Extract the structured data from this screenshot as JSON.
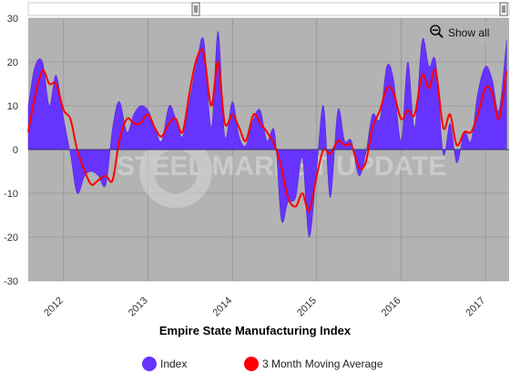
{
  "chart_data": {
    "type": "area",
    "title": "Empire State Manufacturing Index",
    "watermark": "STEEL MARKET UPDATE",
    "xlabel": "",
    "ylabel": "",
    "ylim": [
      -30,
      30
    ],
    "yticks": [
      -30,
      -20,
      -10,
      0,
      10,
      20,
      30
    ],
    "xlim": [
      2011.75,
      2017.45
    ],
    "xticks": [
      {
        "value": 2012.17,
        "label": "2012"
      },
      {
        "value": 2013.17,
        "label": "2013"
      },
      {
        "value": 2014.17,
        "label": "2014"
      },
      {
        "value": 2015.17,
        "label": "2015"
      },
      {
        "value": 2016.17,
        "label": "2016"
      },
      {
        "value": 2017.17,
        "label": "2017"
      }
    ],
    "grid": true,
    "legend": "bottom",
    "series": [
      {
        "name": "Index",
        "style": "area",
        "color": "#6633ff",
        "x": [
          2011.75,
          2011.83,
          2011.92,
          2012.0,
          2012.08,
          2012.17,
          2012.25,
          2012.33,
          2012.42,
          2012.5,
          2012.58,
          2012.67,
          2012.75,
          2012.83,
          2012.92,
          2013.0,
          2013.08,
          2013.17,
          2013.25,
          2013.33,
          2013.42,
          2013.5,
          2013.58,
          2013.67,
          2013.75,
          2013.83,
          2013.92,
          2014.0,
          2014.08,
          2014.17,
          2014.25,
          2014.33,
          2014.42,
          2014.5,
          2014.58,
          2014.67,
          2014.75,
          2014.83,
          2014.92,
          2015.0,
          2015.08,
          2015.17,
          2015.25,
          2015.33,
          2015.42,
          2015.5,
          2015.58,
          2015.67,
          2015.75,
          2015.83,
          2015.92,
          2016.0,
          2016.08,
          2016.17,
          2016.25,
          2016.33,
          2016.42,
          2016.5,
          2016.58,
          2016.67,
          2016.75,
          2016.83,
          2016.92,
          2017.0,
          2017.08,
          2017.17,
          2017.25,
          2017.33,
          2017.42
        ],
        "values": [
          10,
          19,
          20,
          10,
          17,
          7,
          -1,
          -10,
          -6,
          -5,
          -6,
          -8,
          5,
          11,
          4,
          8,
          10,
          9,
          5,
          2,
          10,
          7,
          3,
          12,
          20,
          25,
          5,
          27,
          3,
          11,
          3,
          1,
          7,
          9,
          2,
          4,
          -16,
          -12,
          -11,
          -2,
          -20,
          -4,
          10,
          -11,
          9,
          2,
          2,
          -6,
          -1,
          8,
          7,
          19,
          16,
          2,
          20,
          5,
          25,
          19,
          20,
          -1,
          6,
          -3,
          4,
          2,
          13,
          19,
          16,
          9,
          25
        ]
      },
      {
        "name": "3 Month Moving Average",
        "style": "line",
        "color": "#ff0000",
        "x": [
          2011.75,
          2011.83,
          2011.92,
          2012.0,
          2012.08,
          2012.17,
          2012.25,
          2012.33,
          2012.42,
          2012.5,
          2012.58,
          2012.67,
          2012.75,
          2012.83,
          2012.92,
          2013.0,
          2013.08,
          2013.17,
          2013.25,
          2013.33,
          2013.42,
          2013.5,
          2013.58,
          2013.67,
          2013.75,
          2013.83,
          2013.92,
          2014.0,
          2014.08,
          2014.17,
          2014.25,
          2014.33,
          2014.42,
          2014.5,
          2014.58,
          2014.67,
          2014.75,
          2014.83,
          2014.92,
          2015.0,
          2015.08,
          2015.17,
          2015.25,
          2015.33,
          2015.42,
          2015.5,
          2015.58,
          2015.67,
          2015.75,
          2015.83,
          2015.92,
          2016.0,
          2016.08,
          2016.17,
          2016.25,
          2016.33,
          2016.42,
          2016.5,
          2016.58,
          2016.67,
          2016.75,
          2016.83,
          2016.92,
          2017.0,
          2017.08,
          2017.17,
          2017.25,
          2017.33,
          2017.42
        ],
        "values": [
          4,
          12,
          18,
          15,
          15,
          9,
          7,
          0,
          -5,
          -8,
          -7,
          -6,
          -7,
          2,
          7,
          6,
          6,
          8,
          5,
          3,
          6,
          7,
          4,
          14,
          21,
          22,
          10,
          20,
          6,
          8,
          5,
          2,
          8,
          6,
          4,
          1,
          -4,
          -11,
          -13,
          -10,
          -14,
          -6,
          0,
          -1,
          2,
          1,
          1,
          -4,
          -3,
          5,
          9,
          14,
          13,
          7,
          9,
          8,
          17,
          14,
          18,
          5,
          8,
          1,
          4,
          4,
          8,
          14,
          13,
          7,
          18
        ]
      }
    ]
  },
  "navigator": {
    "show_all_label": "Show all",
    "handle_left": "handle-left",
    "handle_right": "handle-right"
  },
  "legend": [
    {
      "label": "Index",
      "color": "#6633ff"
    },
    {
      "label": "3 Month Moving Average",
      "color": "#ff0000"
    }
  ],
  "colors": {
    "plot_background": "#b3b3b3",
    "grid": "#888888",
    "axis": "#555555"
  }
}
